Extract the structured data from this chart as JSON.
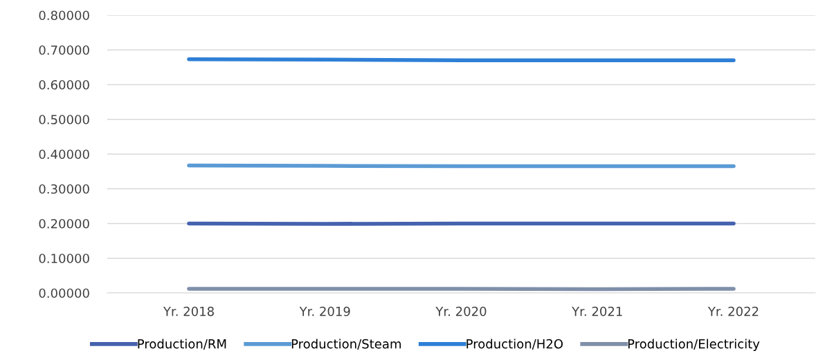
{
  "chart_data": {
    "type": "line",
    "categories": [
      "Yr. 2018",
      "Yr. 2019",
      "Yr. 2020",
      "Yr. 2021",
      "Yr. 2022"
    ],
    "series": [
      {
        "name": "Production/RM",
        "color": "#4562ae",
        "values": [
          0.2,
          0.199,
          0.2,
          0.2,
          0.2
        ]
      },
      {
        "name": "Production/Steam",
        "color": "#5b9bd5",
        "values": [
          0.367,
          0.366,
          0.365,
          0.365,
          0.365
        ]
      },
      {
        "name": "Production/H2O",
        "color": "#2e7fd6",
        "values": [
          0.673,
          0.672,
          0.67,
          0.67,
          0.67
        ]
      },
      {
        "name": "Production/Electricity",
        "color": "#7f8fa9",
        "values": [
          0.012,
          0.012,
          0.012,
          0.011,
          0.012
        ]
      }
    ],
    "ylim": [
      0,
      0.8
    ],
    "yticks": [
      {
        "value": 0,
        "label": "0.00000"
      },
      {
        "value": 0.1,
        "label": "0.10000"
      },
      {
        "value": 0.2,
        "label": "0.20000"
      },
      {
        "value": 0.3,
        "label": "0.30000"
      },
      {
        "value": 0.4,
        "label": "0.40000"
      },
      {
        "value": 0.5,
        "label": "0.50000"
      },
      {
        "value": 0.6,
        "label": "0.60000"
      },
      {
        "value": 0.7,
        "label": "0.70000"
      },
      {
        "value": 0.8,
        "label": "0.80000"
      }
    ],
    "grid": "y",
    "legend": "bottom",
    "marker": "none",
    "line_style": "solid"
  }
}
